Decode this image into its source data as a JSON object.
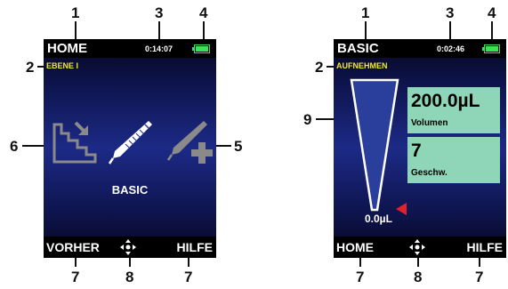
{
  "callouts": {
    "left": {
      "c1": "1",
      "c2": "2",
      "c3": "3",
      "c4": "4",
      "c5": "5",
      "c6": "6",
      "c7a": "7",
      "c7b": "7",
      "c8": "8"
    },
    "right": {
      "c1": "1",
      "c2": "2",
      "c3": "3",
      "c4": "4",
      "c9": "9",
      "c7a": "7",
      "c7b": "7",
      "c8": "8"
    }
  },
  "left_screen": {
    "title": "HOME",
    "clock": "0:14:07",
    "level": "EBENE I",
    "menu_label": "BASIC",
    "softkey_left": "VORHER",
    "softkey_right": "HILFE",
    "icons": [
      "stairs-arrow-icon",
      "pipette-icon",
      "pipette-plus-icon",
      "nav-pad-icon",
      "battery-icon"
    ]
  },
  "right_screen": {
    "title": "BASIC",
    "clock": "0:02:46",
    "mode": "AUFNEHMEN",
    "volume_value": "200.0µL",
    "volume_label": "Volumen",
    "speed_value": "7",
    "speed_label": "Geschw.",
    "current_volume": "0.0µL",
    "fill_level": 0.0,
    "softkey_left": "HOME",
    "softkey_right": "HILFE",
    "icons": [
      "pipette-tip-indicator-icon",
      "red-pointer-icon",
      "nav-pad-icon",
      "battery-icon"
    ]
  },
  "colors": {
    "sub_title": "#f2ea2c",
    "value_box": "#8fd6b9",
    "battery": "#3ee05a",
    "pointer": "#e0222a",
    "screen_mid": "#1c2a86"
  }
}
